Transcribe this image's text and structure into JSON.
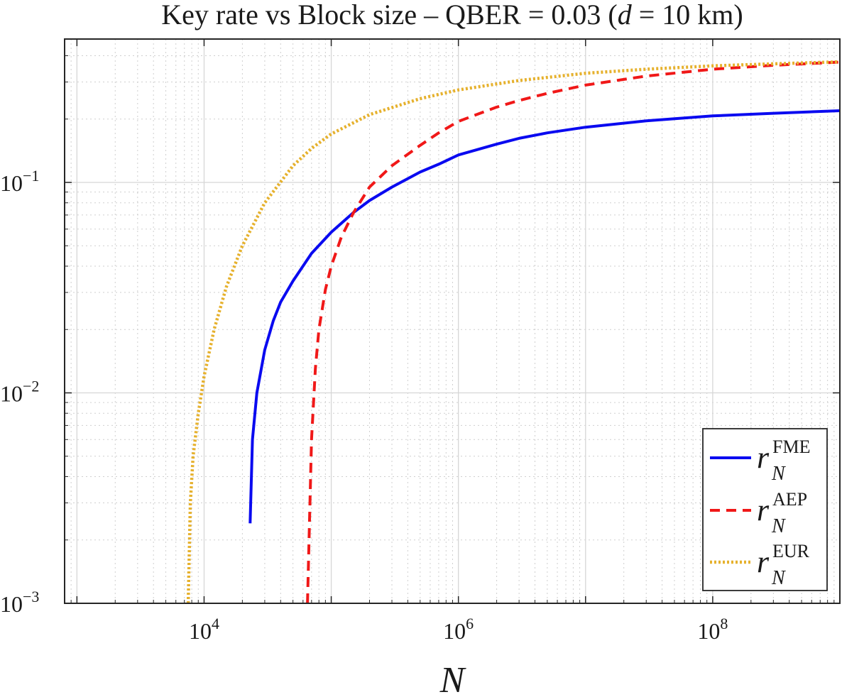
{
  "chart_data": {
    "type": "line",
    "title": "Key rate vs Block size – QBER  = 0.03 (",
    "title_var": "d",
    "title_eq": " = 10 km)",
    "xlabel": "N",
    "ylabel": "",
    "xscale": "log",
    "yscale": "log",
    "xlim": [
      800,
      1000000000
    ],
    "ylim": [
      0.001,
      0.48
    ],
    "grid": true,
    "x_ticks": [
      {
        "value": 10000,
        "base": "10",
        "exp": "4"
      },
      {
        "value": 1000000,
        "base": "10",
        "exp": "6"
      },
      {
        "value": 100000000,
        "base": "10",
        "exp": "8"
      }
    ],
    "y_ticks": [
      {
        "value": 0.1,
        "base": "10",
        "exp": "−1"
      },
      {
        "value": 0.01,
        "base": "10",
        "exp": "−2"
      },
      {
        "value": 0.001,
        "base": "10",
        "exp": "−3"
      }
    ],
    "legend_position": "bottom-right",
    "series": [
      {
        "name": "r_N^FME",
        "label_main": "r",
        "label_sup": "FME",
        "label_sub": "N",
        "color": "#0a0af0",
        "style": "solid",
        "points": [
          [
            23000,
            0.0024
          ],
          [
            24000,
            0.006
          ],
          [
            26000,
            0.01
          ],
          [
            30000,
            0.016
          ],
          [
            35000,
            0.022
          ],
          [
            40000,
            0.027
          ],
          [
            50000,
            0.034
          ],
          [
            70000,
            0.046
          ],
          [
            100000,
            0.058
          ],
          [
            150000,
            0.072
          ],
          [
            200000,
            0.082
          ],
          [
            300000,
            0.095
          ],
          [
            500000,
            0.112
          ],
          [
            700000,
            0.122
          ],
          [
            1000000,
            0.135
          ],
          [
            2000000,
            0.152
          ],
          [
            3000000,
            0.162
          ],
          [
            5000000,
            0.172
          ],
          [
            10000000,
            0.183
          ],
          [
            30000000,
            0.196
          ],
          [
            100000000,
            0.207
          ],
          [
            300000000,
            0.213
          ],
          [
            1000000000,
            0.219
          ]
        ]
      },
      {
        "name": "r_N^AEP",
        "label_main": "r",
        "label_sup": "AEP",
        "label_sub": "N",
        "color": "#f01818",
        "style": "dashed",
        "points": [
          [
            65000,
            0.001
          ],
          [
            68000,
            0.003
          ],
          [
            70000,
            0.006
          ],
          [
            75000,
            0.013
          ],
          [
            80000,
            0.02
          ],
          [
            90000,
            0.031
          ],
          [
            100000,
            0.04
          ],
          [
            120000,
            0.055
          ],
          [
            150000,
            0.072
          ],
          [
            200000,
            0.095
          ],
          [
            300000,
            0.12
          ],
          [
            500000,
            0.15
          ],
          [
            700000,
            0.172
          ],
          [
            1000000,
            0.195
          ],
          [
            2000000,
            0.228
          ],
          [
            3000000,
            0.245
          ],
          [
            5000000,
            0.265
          ],
          [
            10000000,
            0.29
          ],
          [
            30000000,
            0.32
          ],
          [
            100000000,
            0.345
          ],
          [
            300000000,
            0.36
          ],
          [
            1000000000,
            0.373
          ]
        ]
      },
      {
        "name": "r_N^EUR",
        "label_main": "r",
        "label_sup": "EUR",
        "label_sub": "N",
        "color": "#e6b12d",
        "style": "dotted",
        "points": [
          [
            7500,
            0.001
          ],
          [
            7800,
            0.003
          ],
          [
            8200,
            0.005
          ],
          [
            9000,
            0.008
          ],
          [
            10000,
            0.012
          ],
          [
            12000,
            0.02
          ],
          [
            15000,
            0.032
          ],
          [
            20000,
            0.05
          ],
          [
            30000,
            0.08
          ],
          [
            50000,
            0.12
          ],
          [
            70000,
            0.145
          ],
          [
            100000,
            0.17
          ],
          [
            200000,
            0.21
          ],
          [
            500000,
            0.25
          ],
          [
            1000000,
            0.275
          ],
          [
            3000000,
            0.305
          ],
          [
            10000000,
            0.33
          ],
          [
            30000000,
            0.345
          ],
          [
            100000000,
            0.358
          ],
          [
            300000000,
            0.366
          ],
          [
            1000000000,
            0.374
          ]
        ]
      }
    ]
  }
}
